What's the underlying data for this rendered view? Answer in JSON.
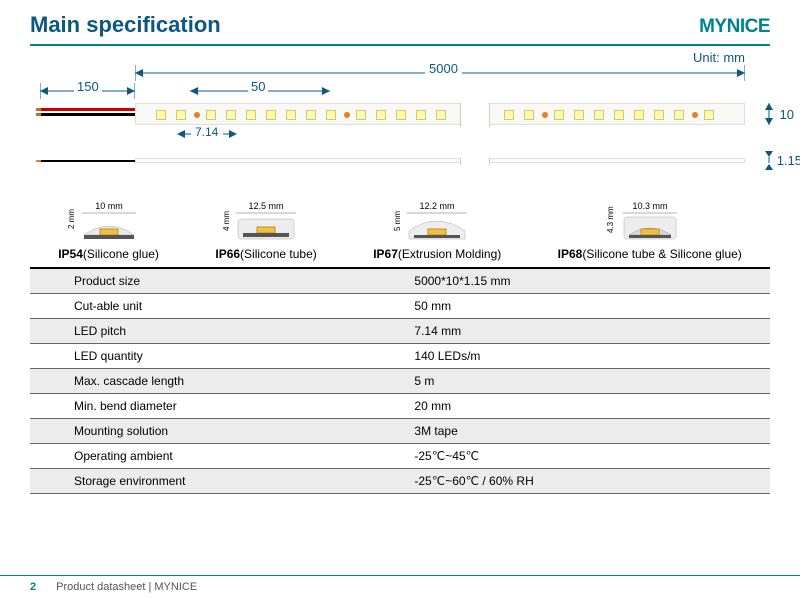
{
  "header": {
    "title": "Main specification",
    "logo": "MYNICE"
  },
  "unit_label": "Unit: mm",
  "dims": {
    "lead": "150",
    "total": "5000",
    "cut": "50",
    "pitch": "7.14",
    "height": "10",
    "thin": "1.15"
  },
  "colors": {
    "brand": "#00838f",
    "title": "#0b5882",
    "led": "#fffab0",
    "cutmark": "#e67e22",
    "strip_bg": "#f8f8f5",
    "red_wire": "#cc0000",
    "black_wire": "#000000",
    "table_stripe": "#ececec"
  },
  "profiles": [
    {
      "w": "10 mm",
      "h": "2 mm",
      "bold": "IP54",
      "desc": "(Silicone glue)"
    },
    {
      "w": "12.5 mm",
      "h": "4 mm",
      "bold": "IP66",
      "desc": "(Silicone tube)"
    },
    {
      "w": "12.2 mm",
      "h": "5 mm",
      "bold": "IP67",
      "desc": "(Extrusion Molding)"
    },
    {
      "w": "10.3 mm",
      "h": "4.3 mm",
      "bold": "IP68",
      "desc": "(Silicone tube & Silicone glue)"
    }
  ],
  "profile_fontsize": 12,
  "specs": [
    {
      "k": "Product size",
      "v": "5000*10*1.15 mm"
    },
    {
      "k": "Cut-able unit",
      "v": "50 mm"
    },
    {
      "k": "LED pitch",
      "v": "7.14 mm"
    },
    {
      "k": "LED quantity",
      "v": "140 LEDs/m"
    },
    {
      "k": "Max. cascade length",
      "v": "5 m"
    },
    {
      "k": "Min. bend diameter",
      "v": "20 mm"
    },
    {
      "k": "Mounting solution",
      "v": "3M tape"
    },
    {
      "k": "Operating ambient",
      "v": "-25℃~45℃"
    },
    {
      "k": "Storage environment",
      "v": "-25℃~60℃ / 60% RH"
    }
  ],
  "footer": {
    "page": "2",
    "text": "Product datasheet | MYNICE"
  }
}
